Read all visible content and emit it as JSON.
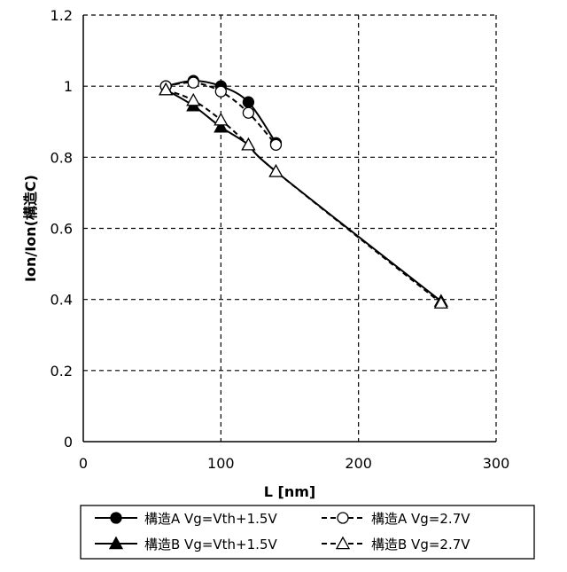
{
  "chart_data": {
    "type": "line",
    "xlabel": "L [nm]",
    "ylabel": "Ion/Ion(構造C)",
    "xlim": [
      0,
      300
    ],
    "ylim": [
      0,
      1.2
    ],
    "xticks": [
      "0",
      "100",
      "200",
      "300"
    ],
    "yticks": [
      "0",
      "0.2",
      "0.4",
      "0.6",
      "0.8",
      "1",
      "1.2"
    ],
    "grid": "dashed",
    "legend_position": "bottom",
    "series": [
      {
        "name": "構造A Vg=Vth+1.5V",
        "marker": "filled-circle",
        "line": "solid",
        "x": [
          60,
          80,
          100,
          120,
          140
        ],
        "y": [
          1.0,
          1.015,
          1.0,
          0.955,
          0.84
        ]
      },
      {
        "name": "構造A Vg=2.7V",
        "marker": "open-circle",
        "line": "dashed",
        "x": [
          60,
          80,
          100,
          120,
          140
        ],
        "y": [
          1.0,
          1.01,
          0.985,
          0.925,
          0.835
        ]
      },
      {
        "name": "構造B Vg=Vth+1.5V",
        "marker": "filled-triangle",
        "line": "solid",
        "x": [
          60,
          80,
          100,
          120,
          140,
          260
        ],
        "y": [
          0.99,
          0.945,
          0.885,
          0.835,
          0.76,
          0.395
        ]
      },
      {
        "name": "構造B Vg=2.7V",
        "marker": "open-triangle",
        "line": "dashed",
        "x": [
          60,
          80,
          100,
          120,
          140,
          260
        ],
        "y": [
          0.99,
          0.96,
          0.905,
          0.835,
          0.76,
          0.39
        ]
      }
    ]
  }
}
